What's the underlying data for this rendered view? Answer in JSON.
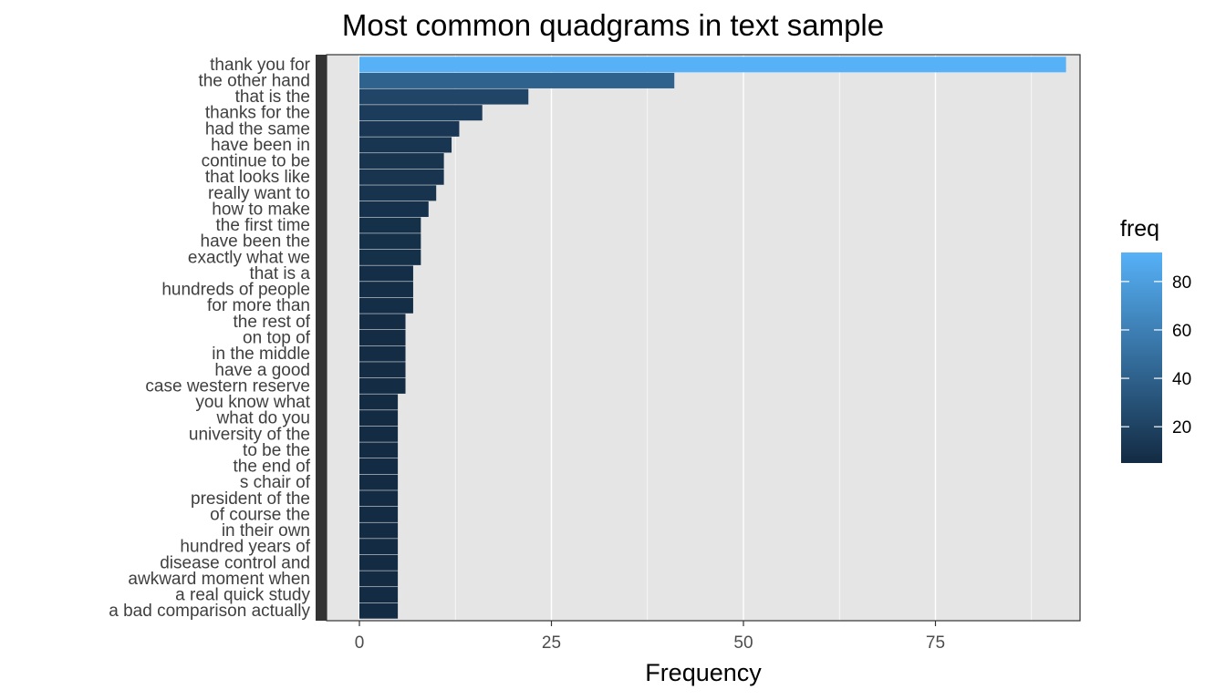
{
  "chart_data": {
    "type": "bar",
    "orientation": "horizontal",
    "title": "Most common quadgrams in text sample",
    "xlabel": "Frequency",
    "ylabel": "",
    "xlim": [
      0,
      93
    ],
    "x_ticks": [
      0,
      25,
      50,
      75
    ],
    "grid": true,
    "legend": {
      "title": "freq",
      "position": "right",
      "type": "colorbar",
      "ticks": [
        20,
        40,
        60,
        80
      ],
      "range": [
        5,
        92
      ],
      "color_low": "#132B43",
      "color_high": "#56B1F7"
    },
    "categories": [
      "a bad comparison actually",
      "a real quick study",
      "awkward moment when",
      "disease control and",
      "hundred years of",
      "in their own",
      "of course the",
      "president of the",
      "s chair of",
      "the end of",
      "to be the",
      "university of the",
      "what do you",
      "you know what",
      "case western reserve",
      "have a good",
      "in the middle",
      "on top of",
      "the rest of",
      "for more than",
      "hundreds of people",
      "that is a",
      "exactly what we",
      "have been the",
      "the first time",
      "how to make",
      "really want to",
      "that looks like",
      "continue to be",
      "have been in",
      "had the same",
      "thanks for the",
      "that is the",
      "the other hand",
      "thank you for"
    ],
    "series": [
      {
        "values": [
          5,
          5,
          5,
          5,
          5,
          5,
          5,
          5,
          5,
          5,
          5,
          5,
          5,
          5,
          6,
          6,
          6,
          6,
          6,
          7,
          7,
          7,
          8,
          8,
          8,
          9,
          10,
          11,
          11,
          12,
          13,
          16,
          22,
          41,
          92
        ]
      }
    ]
  }
}
